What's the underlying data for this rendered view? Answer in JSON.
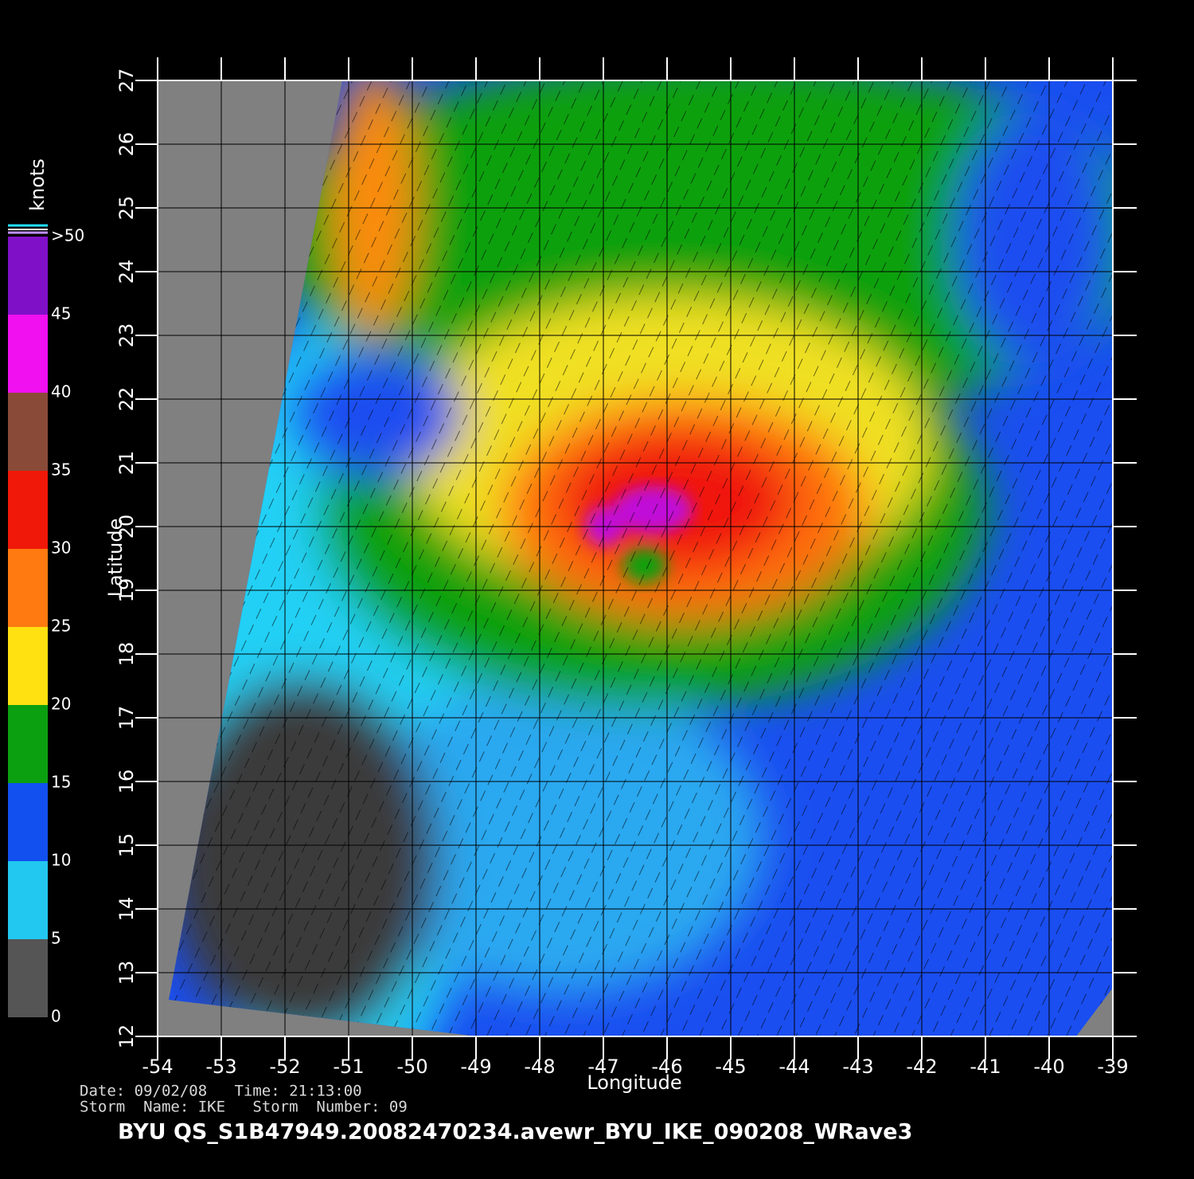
{
  "map": {
    "xlabel": "Longitude",
    "ylabel": "Latitude",
    "xlim": [
      -54,
      -39
    ],
    "ylim": [
      12,
      27
    ],
    "xticks": [
      -54,
      -53,
      -52,
      -51,
      -50,
      -49,
      -48,
      -47,
      -46,
      -45,
      -44,
      -43,
      -42,
      -41,
      -40,
      -39
    ],
    "yticks": [
      12,
      13,
      14,
      15,
      16,
      17,
      18,
      19,
      20,
      21,
      22,
      23,
      24,
      25,
      26,
      27
    ],
    "grid": true
  },
  "colorbar": {
    "title": "knots",
    "lim": [
      0,
      50
    ],
    "ticks": [
      0,
      5,
      10,
      15,
      20,
      25,
      30,
      35,
      40,
      45,
      {
        "value": 50,
        "label": ">50"
      }
    ],
    "colors": [
      "#555555",
      "#22c8f0",
      "#1250f0",
      "#0aa010",
      "#ffe010",
      "#ff7a10",
      "#f01808",
      "#8a4a38",
      "#f010f0",
      "#8010c8"
    ]
  },
  "footer": {
    "line1": "Date: 09/02/08   Time: 21:13:00",
    "line2": "Storm  Name: IKE   Storm  Number: 09",
    "title": "BYU  QS_S1B47949.20082470234.avewr_BYU_IKE_090208_WRave3"
  }
}
